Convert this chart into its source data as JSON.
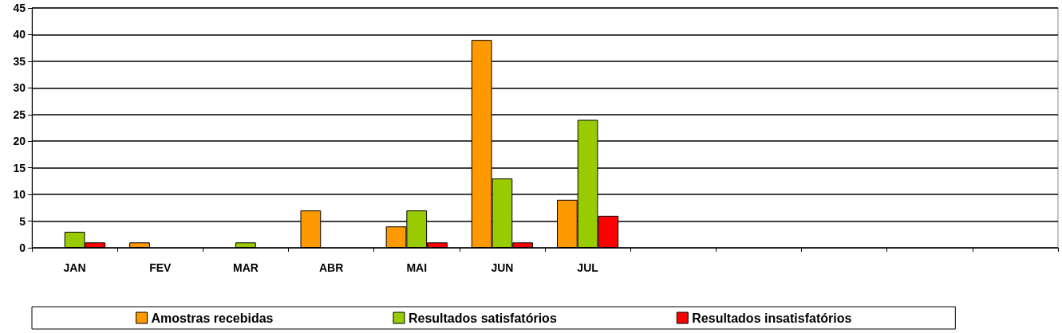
{
  "chart_data": {
    "type": "bar",
    "categories": [
      "JAN",
      "FEV",
      "MAR",
      "ABR",
      "MAI",
      "JUN",
      "JUL",
      null,
      null,
      null,
      null,
      null
    ],
    "series": [
      {
        "name": "Amostras recebidas",
        "color": "#ff9900",
        "values": [
          0,
          1,
          0,
          7,
          4,
          39,
          9,
          null,
          null,
          null,
          null,
          null
        ]
      },
      {
        "name": "Resultados satisfatórios",
        "color": "#99cc00",
        "values": [
          3,
          0,
          1,
          0,
          7,
          13,
          24,
          null,
          null,
          null,
          null,
          null
        ]
      },
      {
        "name": "Resultados insatisfatórios",
        "color": "#ff0000",
        "values": [
          1,
          0,
          0,
          0,
          1,
          1,
          6,
          null,
          null,
          null,
          null,
          null
        ]
      }
    ],
    "ylim": [
      0,
      45
    ],
    "yticks": [
      0,
      5,
      10,
      15,
      20,
      25,
      30,
      35,
      40,
      45
    ],
    "grid": "y",
    "legend": "bottom"
  }
}
